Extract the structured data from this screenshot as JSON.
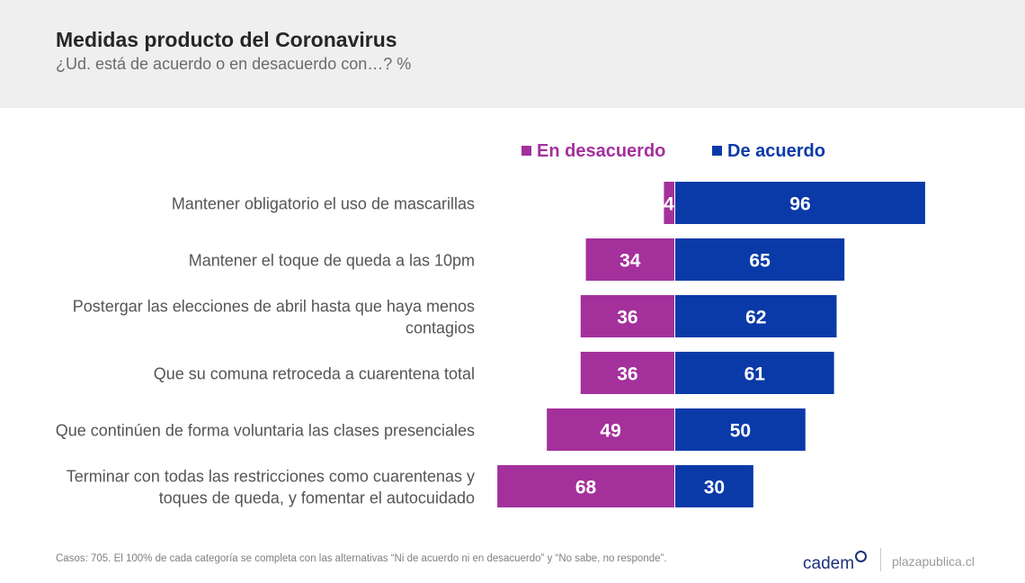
{
  "header": {
    "title": "Medidas producto del Coronavirus",
    "subtitle": "¿Ud. está de acuerdo o en desacuerdo con…? %"
  },
  "chart_data": {
    "type": "bar",
    "orientation": "horizontal-diverging",
    "categories": [
      [
        "Mantener obligatorio el uso de mascarillas"
      ],
      [
        "Mantener el toque de queda a las 10pm"
      ],
      [
        "Postergar las elecciones de abril hasta que haya menos",
        "contagios"
      ],
      [
        "Que su comuna retroceda a cuarentena total"
      ],
      [
        "Que continúen de forma voluntaria las clases presenciales"
      ],
      [
        "Terminar con todas las restricciones como cuarentenas y",
        "toques de queda, y fomentar el autocuidado"
      ]
    ],
    "series": [
      {
        "name": "En desacuerdo",
        "color": "#a4309c",
        "values": [
          4,
          34,
          36,
          36,
          49,
          68
        ]
      },
      {
        "name": "De acuerdo",
        "color": "#0a3aa8",
        "values": [
          96,
          65,
          62,
          61,
          50,
          30
        ]
      }
    ],
    "legend": "top",
    "grid": false
  },
  "footer": {
    "note": "Casos: 705. El 100% de cada categoría se completa con las alternativas “Ni de acuerdo ni en desacuerdo” y “No sabe, no responde”.",
    "brand": "cadem",
    "site": "plazapublica.cl"
  }
}
